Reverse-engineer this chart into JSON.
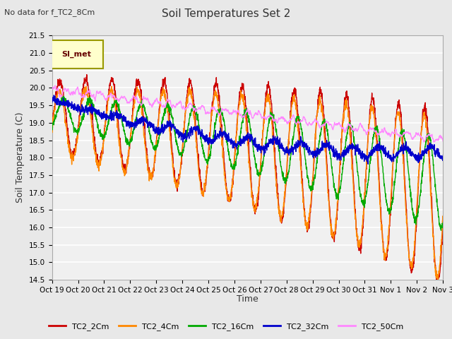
{
  "title": "Soil Temperatures Set 2",
  "subtitle": "No data for f_TC2_8Cm",
  "ylabel": "Soil Temperature (C)",
  "xlabel": "Time",
  "ylim": [
    14.5,
    21.5
  ],
  "yticks": [
    14.5,
    15.0,
    15.5,
    16.0,
    16.5,
    17.0,
    17.5,
    18.0,
    18.5,
    19.0,
    19.5,
    20.0,
    20.5,
    21.0,
    21.5
  ],
  "xtick_labels": [
    "Oct 19",
    "Oct 20",
    "Oct 21",
    "Oct 22",
    "Oct 23",
    "Oct 24",
    "Oct 25",
    "Oct 26",
    "Oct 27",
    "Oct 28",
    "Oct 29",
    "Oct 30",
    "Oct 31",
    "Nov 1",
    "Nov 2",
    "Nov 3"
  ],
  "series_colors": {
    "TC2_2Cm": "#cc0000",
    "TC2_4Cm": "#ff8800",
    "TC2_16Cm": "#00aa00",
    "TC2_32Cm": "#0000cc",
    "TC2_50Cm": "#ff88ff"
  },
  "legend_label": "SI_met",
  "legend_bg": "#ffffcc",
  "legend_border": "#999900",
  "bg_color": "#e8e8e8",
  "plot_bg": "#f0f0f0",
  "grid_color": "#ffffff",
  "n_points": 2016,
  "seed": 42
}
